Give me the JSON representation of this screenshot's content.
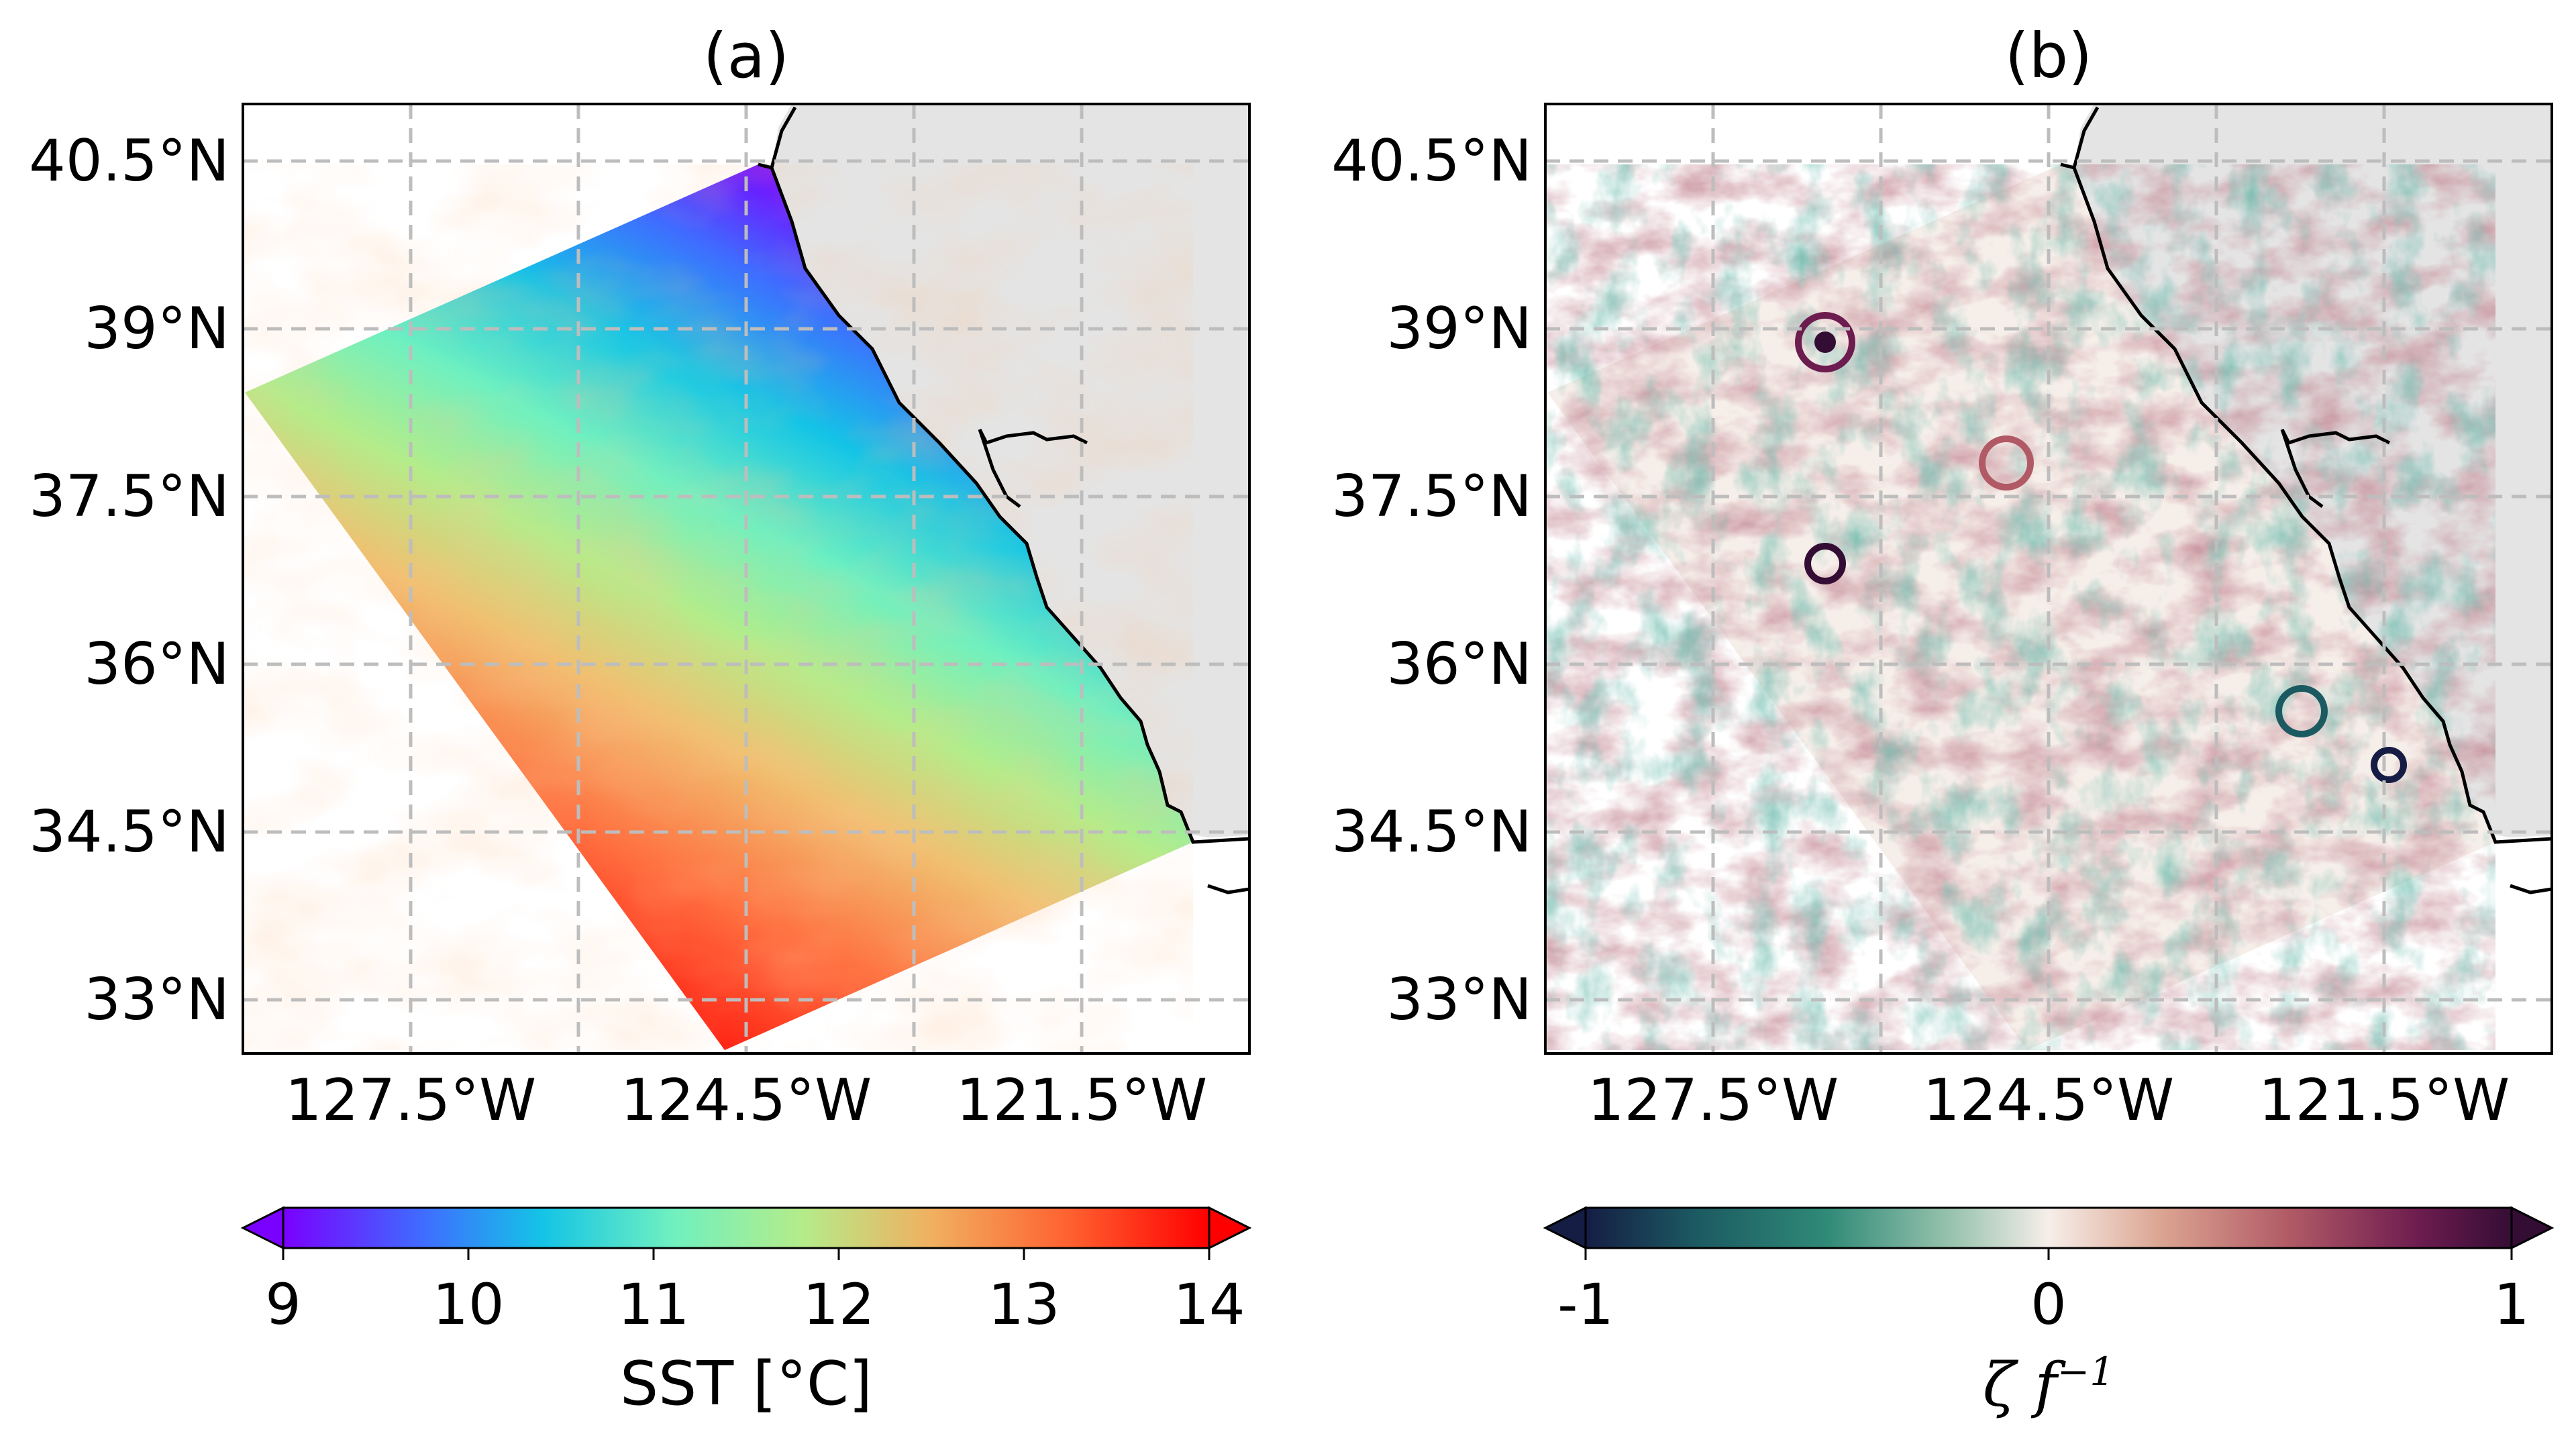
{
  "panels": [
    {
      "title": "(a)",
      "lat_ticks": [
        "40.5°N",
        "39°N",
        "37.5°N",
        "36°N",
        "34.5°N",
        "33°N"
      ],
      "lon_ticks": [
        "127.5°W",
        "124.5°W",
        "121.5°W"
      ],
      "field": "SST",
      "colorbar": {
        "ticks": [
          "9",
          "10",
          "11",
          "12",
          "13",
          "14"
        ],
        "label": "SST [°C]",
        "range": [
          9,
          14
        ],
        "colormap": "rainbow/turbo",
        "colors": [
          "#7a00ff",
          "#3f6cff",
          "#14c4e6",
          "#6ff0c0",
          "#b4ec8a",
          "#f0c070",
          "#ff7040",
          "#ff0000"
        ],
        "extend": "both"
      }
    },
    {
      "title": "(b)",
      "lat_ticks": [
        "40.5°N",
        "39°N",
        "37.5°N",
        "36°N",
        "34.5°N",
        "33°N"
      ],
      "lon_ticks": [
        "127.5°W",
        "124.5°W",
        "121.5°W"
      ],
      "field": "relative vorticity",
      "colorbar": {
        "ticks": [
          "-1",
          "0",
          "1"
        ],
        "label_symbol": "ζ f",
        "label_exponent": "−1",
        "range": [
          -1,
          1
        ],
        "colormap": "diverging curl",
        "colors": [
          "#151d44",
          "#1c5a62",
          "#2f8a77",
          "#9cc5b0",
          "#f6eee9",
          "#dca592",
          "#b15a66",
          "#6d1c4f",
          "#340d35"
        ],
        "extend": "both"
      }
    }
  ],
  "map_extent": {
    "lon": [
      -129,
      -120.5
    ],
    "lat": [
      32.5,
      41
    ]
  },
  "colors": {
    "land": "#e4e4e4",
    "coast": "#000000",
    "grid": "#bdbdbd"
  }
}
